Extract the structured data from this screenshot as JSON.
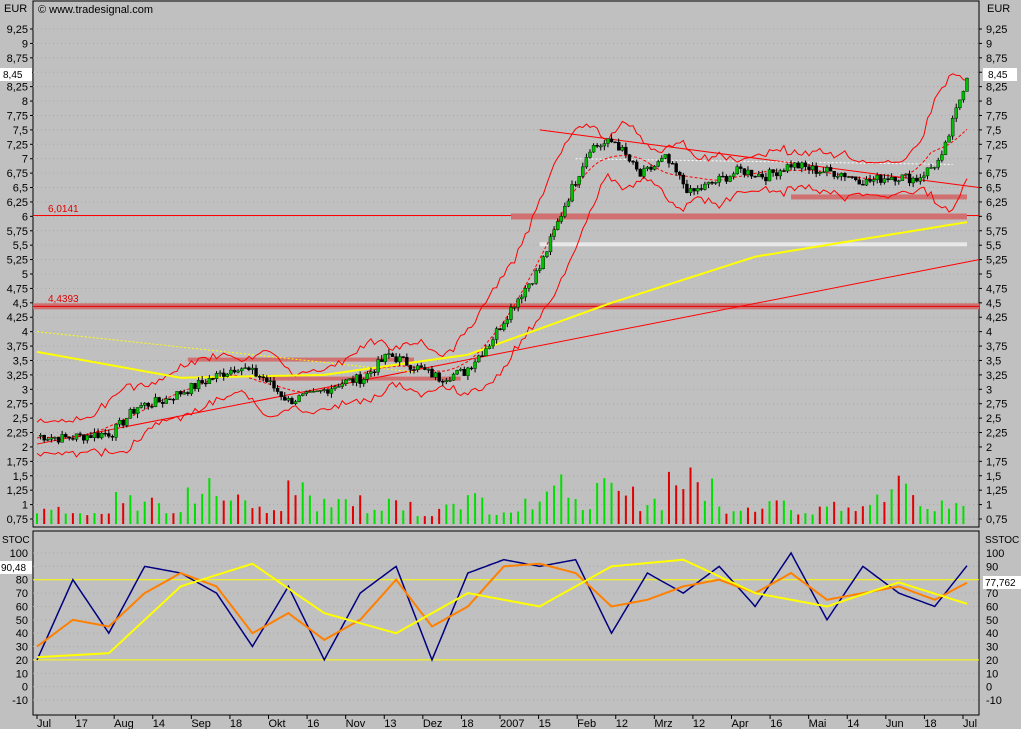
{
  "header": {
    "source": "© www.tradesignal.com",
    "currency_left": "EUR",
    "currency_right": "EUR"
  },
  "price_panel": {
    "last_price_label": "8,45",
    "support_labels": [
      "6,0141",
      "4,4393"
    ],
    "y_ticks": [
      "0,75",
      "1",
      "1,25",
      "1,5",
      "1,75",
      "2",
      "2,25",
      "2,5",
      "2,75",
      "3",
      "3,25",
      "3,5",
      "3,75",
      "4",
      "4,25",
      "4,5",
      "4,75",
      "5",
      "5,25",
      "5,5",
      "5,75",
      "6",
      "6,25",
      "6,5",
      "6,75",
      "7",
      "7,25",
      "7,5",
      "7,75",
      "8",
      "8,25",
      "8,5",
      "8,75",
      "9",
      "9,25"
    ]
  },
  "stoch_panel": {
    "label_left": "STOC",
    "label_right": "SSTOC",
    "value_left": "90,48",
    "value_right": "77,762",
    "y_ticks": [
      "-10",
      "0",
      "10",
      "20",
      "30",
      "40",
      "50",
      "60",
      "70",
      "80",
      "90",
      "100"
    ]
  },
  "x_axis": {
    "labels": [
      "Jul",
      "17",
      "Aug",
      "14",
      "Sep",
      "18",
      "Okt",
      "16",
      "Nov",
      "13",
      "Dez",
      "18",
      "2007",
      "15",
      "Feb",
      "12",
      "Mrz",
      "12",
      "Apr",
      "16",
      "Mai",
      "14",
      "Jun",
      "18",
      "Jul"
    ]
  },
  "colors": {
    "background": "#c0c0c0",
    "candle_up": "#00c000",
    "candle_down": "#000000",
    "volume_up": "#00e000",
    "volume_down": "#e00000",
    "bollinger": "#ff0000",
    "ma200": "#ffff00",
    "stoch_fast": "#000080",
    "stoch_slow": "#ff8000",
    "stoch_signal": "#ffff00",
    "support_band": "#d07070",
    "resistance_band_light": "#e8e8e8"
  },
  "chart_data": [
    {
      "type": "candlestick",
      "title": "",
      "ylabel": "EUR",
      "ylim": [
        0.75,
        9.25
      ],
      "x_ticks": [
        "Jul",
        "17",
        "Aug",
        "14",
        "Sep",
        "18",
        "Okt",
        "16",
        "Nov",
        "13",
        "Dez",
        "18",
        "2007",
        "15",
        "Feb",
        "12",
        "Mrz",
        "12",
        "Apr",
        "16",
        "Mai",
        "14",
        "Jun",
        "18",
        "Jul"
      ],
      "series": [
        {
          "x": [
            0,
            7,
            14,
            21,
            28,
            35,
            42,
            49,
            56,
            63,
            70,
            77,
            84,
            91,
            98,
            105,
            112,
            119,
            126,
            133,
            140,
            147,
            154,
            161,
            168,
            175,
            182,
            189,
            196,
            203,
            210,
            217,
            224,
            231,
            238,
            245,
            252,
            259
          ],
          "values": [
            2.2,
            2.15,
            2.2,
            2.25,
            2.7,
            2.8,
            3.0,
            3.2,
            3.4,
            3.2,
            2.8,
            2.9,
            3.1,
            3.2,
            3.6,
            3.4,
            3.2,
            3.3,
            3.8,
            4.5,
            5.1,
            6.2,
            7.2,
            7.3,
            6.7,
            7.0,
            6.4,
            6.6,
            6.8,
            6.7,
            6.9,
            6.8,
            6.75,
            6.6,
            6.7,
            6.65,
            7.0,
            8.45
          ]
        },
        {
          "name": "",
          "x": [
            0,
            40,
            80,
            120,
            160,
            200,
            259
          ],
          "values": [
            3.65,
            3.2,
            3.25,
            3.6,
            4.5,
            5.3,
            5.9
          ]
        }
      ],
      "volume": [
        0.95,
        0.9,
        0.85,
        1.3,
        1.1,
        0.9,
        1.5,
        1.2,
        1.3,
        0.9,
        1.4,
        1.1,
        1.5,
        0.9,
        1.2,
        0.8,
        1.1,
        1.3,
        0.9,
        1.2,
        1.7,
        1.1,
        1.4,
        1.3,
        1.2,
        1.8,
        1.6,
        1.0,
        1.1,
        1.2,
        0.9,
        1.3,
        1.1,
        1.2,
        1.5,
        1.0,
        1.1,
        1.7
      ],
      "support_lines": [
        6.0141,
        4.4393
      ]
    },
    {
      "type": "line",
      "title": "",
      "ylim": [
        -10,
        100
      ],
      "reference_lines": [
        80,
        20
      ],
      "series": [
        {
          "x": [
            0,
            10,
            20,
            30,
            40,
            50,
            60,
            70,
            80,
            90,
            100,
            110,
            120,
            130,
            140,
            150,
            160,
            170,
            180,
            190,
            200,
            210,
            220,
            230,
            240,
            250,
            259
          ],
          "values": [
            20,
            80,
            40,
            90,
            85,
            70,
            30,
            75,
            20,
            70,
            90,
            20,
            85,
            95,
            90,
            95,
            40,
            85,
            70,
            90,
            60,
            100,
            50,
            90,
            70,
            60,
            90.48
          ]
        },
        {
          "x": [
            0,
            10,
            20,
            30,
            40,
            50,
            60,
            70,
            80,
            90,
            100,
            110,
            120,
            130,
            140,
            150,
            160,
            170,
            180,
            190,
            200,
            210,
            220,
            230,
            240,
            250,
            259
          ],
          "values": [
            30,
            50,
            45,
            70,
            85,
            75,
            40,
            55,
            35,
            50,
            80,
            45,
            60,
            90,
            92,
            85,
            60,
            65,
            75,
            80,
            70,
            85,
            65,
            70,
            75,
            65,
            77.762
          ]
        },
        {
          "x": [
            0,
            20,
            40,
            60,
            80,
            100,
            120,
            140,
            160,
            180,
            200,
            220,
            240,
            259
          ],
          "values": [
            22,
            25,
            75,
            92,
            55,
            40,
            70,
            60,
            90,
            95,
            70,
            60,
            78,
            62
          ]
        }
      ]
    }
  ]
}
